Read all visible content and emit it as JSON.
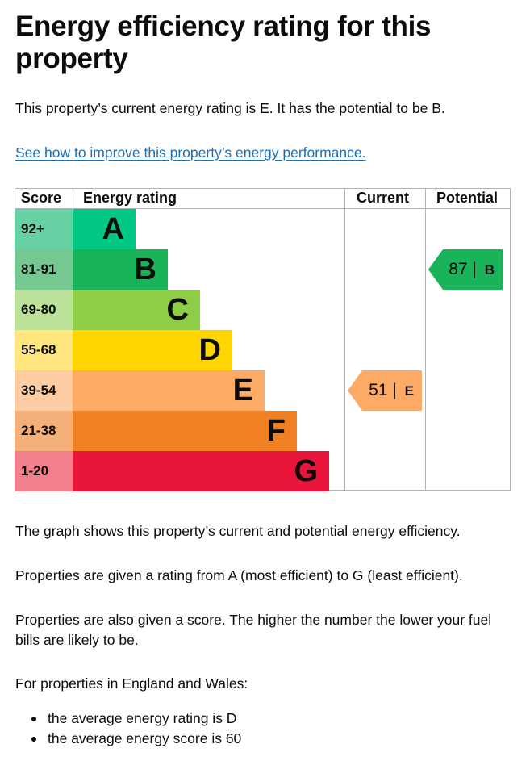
{
  "heading": "Energy efficiency rating for this property",
  "intro": "This property’s current energy rating is E. It has the potential to be B.",
  "improve_link": "See how to improve this property’s energy performance.",
  "graph": {
    "headers": {
      "score": "Score",
      "rating": "Energy rating",
      "current": "Current",
      "potential": "Potential"
    },
    "bands": [
      {
        "score": "92+",
        "letter": "A",
        "bar": "#00c781",
        "cell": "#67d1a4",
        "level": 1
      },
      {
        "score": "81-91",
        "letter": "B",
        "bar": "#19b459",
        "cell": "#75c990",
        "level": 2
      },
      {
        "score": "69-80",
        "letter": "C",
        "bar": "#8dce46",
        "cell": "#bce29a",
        "level": 3
      },
      {
        "score": "55-68",
        "letter": "D",
        "bar": "#ffd500",
        "cell": "#ffe680",
        "level": 4
      },
      {
        "score": "39-54",
        "letter": "E",
        "bar": "#fcaa65",
        "cell": "#fdcca2",
        "level": 5
      },
      {
        "score": "21-38",
        "letter": "F",
        "bar": "#ef8023",
        "cell": "#f5b07a",
        "level": 6
      },
      {
        "score": "1-20",
        "letter": "G",
        "bar": "#e9153b",
        "cell": "#f37e8c",
        "level": 7
      }
    ],
    "current": {
      "score": "51",
      "sep": "|",
      "letter": "E",
      "color": "#fcaa65"
    },
    "potential": {
      "score": "87",
      "sep": "|",
      "letter": "B",
      "color": "#19b459"
    }
  },
  "para1": "The graph shows this property’s current and potential energy efficiency.",
  "para2": "Properties are given a rating from A (most efficient) to G (least efficient).",
  "para3": "Properties are also given a score. The higher the number the lower your fuel bills are likely to be.",
  "para4": "For properties in England and Wales:",
  "bullets": [
    "the average energy rating is D",
    "the average energy score is 60"
  ]
}
